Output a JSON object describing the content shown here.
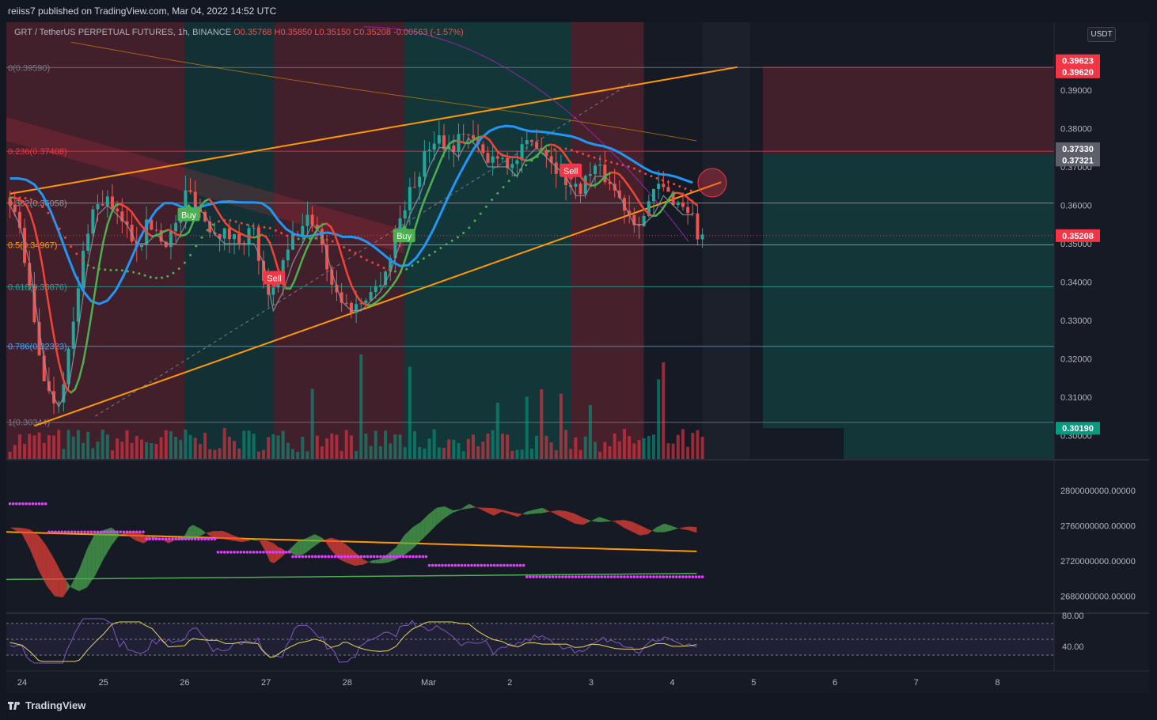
{
  "header": {
    "published": "reiiss7 published on TradingView.com, Mar 04, 2022 14:52 UTC"
  },
  "legend": {
    "symbol": "GRT / TetherUS PERPETUAL FUTURES, 1h, BINANCE",
    "open": "O0.35768",
    "high": "H0.35850",
    "low": "L0.35150",
    "close": "C0.35208",
    "change": "-0.00563 (-1.57%)"
  },
  "currency": "USDT",
  "footer": {
    "brand": "TradingView"
  },
  "chart_data": {
    "type": "candlestick",
    "symbol": "GRT / TetherUS PERPETUAL FUTURES",
    "interval": "1h",
    "exchange": "BINANCE",
    "ohlc_last": {
      "open": 0.35768,
      "high": 0.3585,
      "low": 0.3515,
      "close": 0.35208,
      "change": -0.00563,
      "change_pct": -1.57
    },
    "x_ticks": [
      "24",
      "25",
      "26",
      "27",
      "28",
      "Mar",
      "2",
      "3",
      "4",
      "5",
      "6",
      "7",
      "8"
    ],
    "y_ticks": [
      "0.39000",
      "0.38000",
      "0.37000",
      "0.36000",
      "0.35000",
      "0.34000",
      "0.33000",
      "0.32000",
      "0.31000",
      "0.30000"
    ],
    "y_range": [
      0.2975,
      0.4075
    ],
    "price_labels": [
      {
        "text": "0.39623",
        "value": 0.39623,
        "color": "#f23645"
      },
      {
        "text": "0.39620",
        "value": 0.3962,
        "color": "#f23645"
      },
      {
        "text": "0.37330",
        "value": 0.3733,
        "color": "#5d606b"
      },
      {
        "text": "0.37321",
        "value": 0.37321,
        "color": "#5d606b"
      },
      {
        "text": "0.35208",
        "value": 0.35208,
        "color": "#f23645"
      },
      {
        "text": "0.30190",
        "value": 0.3019,
        "color": "#089981"
      }
    ],
    "fib_levels": [
      {
        "label": "0(0.39590)",
        "value": 0.3959,
        "color": "#787b86"
      },
      {
        "label": "0.236(0.37408)",
        "value": 0.37408,
        "color": "#f23645"
      },
      {
        "label": "0.382(0.36058)",
        "value": 0.36058,
        "color": "#9598a1"
      },
      {
        "label": "0.5(0.34967)",
        "value": 0.34967,
        "color": "#ff9800"
      },
      {
        "label": "0.618(0.33876)",
        "value": 0.33876,
        "color": "#26a69a"
      },
      {
        "label": "0.786(0.32323)",
        "value": 0.32323,
        "color": "#42a5f5"
      },
      {
        "label": "1(0.30344)",
        "value": 0.30344,
        "color": "#787b86"
      }
    ],
    "signals": [
      {
        "text": "Buy",
        "type": "buy",
        "day": 26.05,
        "price": 0.3575
      },
      {
        "text": "Sell",
        "type": "sell",
        "day": 27.1,
        "price": 0.341
      },
      {
        "text": "Buy",
        "type": "buy",
        "day": 28.7,
        "price": 0.352
      },
      {
        "text": "Sell",
        "type": "sell",
        "day": 30.75,
        "price": 0.369
      }
    ],
    "price_path": [
      [
        23.85,
        0.362
      ],
      [
        24.0,
        0.357
      ],
      [
        24.1,
        0.345
      ],
      [
        24.2,
        0.33
      ],
      [
        24.3,
        0.318
      ],
      [
        24.4,
        0.31
      ],
      [
        24.5,
        0.309
      ],
      [
        24.6,
        0.318
      ],
      [
        24.7,
        0.33
      ],
      [
        24.8,
        0.346
      ],
      [
        24.9,
        0.358
      ],
      [
        25.0,
        0.36
      ],
      [
        25.1,
        0.362
      ],
      [
        25.2,
        0.357
      ],
      [
        25.3,
        0.356
      ],
      [
        25.4,
        0.352
      ],
      [
        25.5,
        0.35
      ],
      [
        25.6,
        0.355
      ],
      [
        25.7,
        0.354
      ],
      [
        25.8,
        0.35
      ],
      [
        25.9,
        0.353
      ],
      [
        26.0,
        0.356
      ],
      [
        26.05,
        0.362
      ],
      [
        26.1,
        0.364
      ],
      [
        26.2,
        0.361
      ],
      [
        26.3,
        0.356
      ],
      [
        26.4,
        0.354
      ],
      [
        26.5,
        0.353
      ],
      [
        26.6,
        0.352
      ],
      [
        26.7,
        0.351
      ],
      [
        26.8,
        0.352
      ],
      [
        26.9,
        0.354
      ],
      [
        27.0,
        0.343
      ],
      [
        27.05,
        0.336
      ],
      [
        27.1,
        0.335
      ],
      [
        27.2,
        0.34
      ],
      [
        27.3,
        0.346
      ],
      [
        27.4,
        0.352
      ],
      [
        27.5,
        0.354
      ],
      [
        27.6,
        0.357
      ],
      [
        27.7,
        0.354
      ],
      [
        27.8,
        0.345
      ],
      [
        27.9,
        0.338
      ],
      [
        28.0,
        0.335
      ],
      [
        28.1,
        0.333
      ],
      [
        28.2,
        0.334
      ],
      [
        28.3,
        0.337
      ],
      [
        28.4,
        0.338
      ],
      [
        28.5,
        0.342
      ],
      [
        28.6,
        0.347
      ],
      [
        28.7,
        0.356
      ],
      [
        28.8,
        0.362
      ],
      [
        28.9,
        0.366
      ],
      [
        29.0,
        0.372
      ],
      [
        29.1,
        0.377
      ],
      [
        29.2,
        0.378
      ],
      [
        29.3,
        0.375
      ],
      [
        29.4,
        0.376
      ],
      [
        29.5,
        0.38
      ],
      [
        29.6,
        0.377
      ],
      [
        29.7,
        0.374
      ],
      [
        29.8,
        0.371
      ],
      [
        29.9,
        0.374
      ],
      [
        30.0,
        0.372
      ],
      [
        30.1,
        0.37
      ],
      [
        30.2,
        0.374
      ],
      [
        30.4,
        0.377
      ],
      [
        30.5,
        0.374
      ],
      [
        30.6,
        0.371
      ],
      [
        30.7,
        0.368
      ],
      [
        30.8,
        0.365
      ],
      [
        30.9,
        0.364
      ],
      [
        31.0,
        0.367
      ],
      [
        31.1,
        0.37
      ],
      [
        31.2,
        0.368
      ],
      [
        31.3,
        0.366
      ],
      [
        31.4,
        0.362
      ],
      [
        31.5,
        0.359
      ],
      [
        31.6,
        0.356
      ],
      [
        31.7,
        0.357
      ],
      [
        31.8,
        0.362
      ],
      [
        31.9,
        0.365
      ],
      [
        32.0,
        0.363
      ],
      [
        32.1,
        0.361
      ],
      [
        32.2,
        0.36
      ],
      [
        32.3,
        0.358
      ],
      [
        32.37,
        0.352
      ]
    ],
    "osc_ticks": [
      "2800000000.00000",
      "2760000000.00000",
      "2720000000.00000",
      "2680000000.00000"
    ],
    "rsi_ticks": [
      "80.00",
      "40.00"
    ]
  }
}
